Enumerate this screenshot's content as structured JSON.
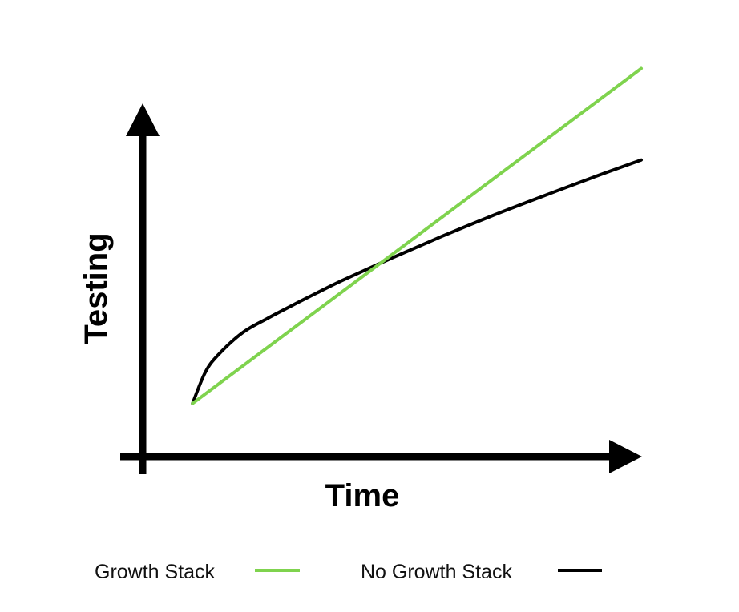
{
  "chart_data": {
    "type": "line",
    "title": "",
    "xlabel": "Time",
    "ylabel": "Testing",
    "xlim": [
      0,
      10
    ],
    "ylim": [
      0,
      10
    ],
    "grid": false,
    "legend_position": "bottom",
    "series": [
      {
        "name": "Growth Stack",
        "color": "#7fd34e",
        "x": [
          1,
          10
        ],
        "y": [
          1.3,
          9.5
        ]
      },
      {
        "name": "No Growth Stack",
        "color": "#000000",
        "x": [
          1,
          1.25,
          1.5,
          2,
          2.5,
          3,
          3.5,
          4,
          5,
          6,
          7,
          8,
          9,
          10
        ],
        "y": [
          1.3,
          2.05,
          2.47,
          3.03,
          3.38,
          3.7,
          4.01,
          4.31,
          4.86,
          5.39,
          5.89,
          6.36,
          6.82,
          7.26
        ]
      }
    ]
  }
}
